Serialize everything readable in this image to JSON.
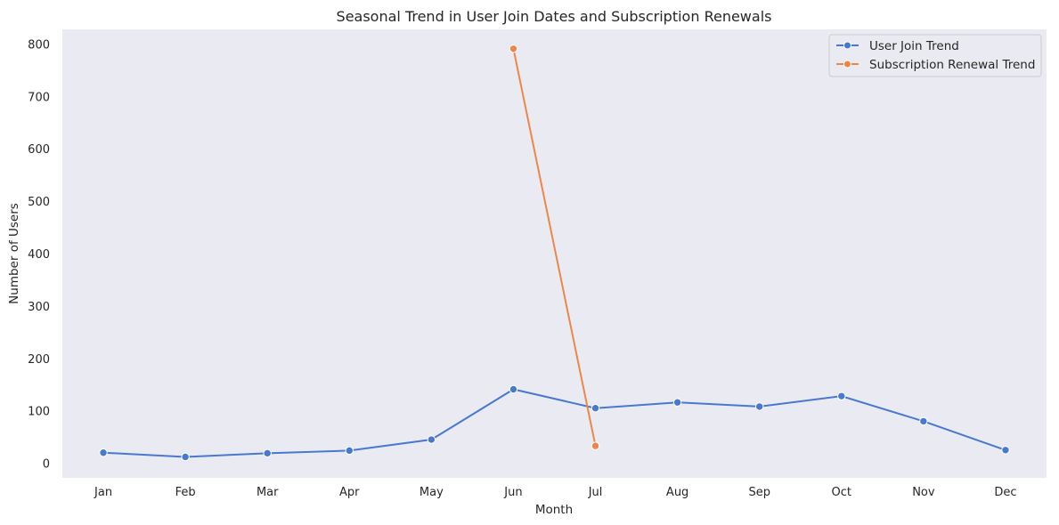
{
  "chart_data": {
    "type": "line",
    "title": "Seasonal Trend in User Join Dates and Subscription Renewals",
    "xlabel": "Month",
    "ylabel": "Number of Users",
    "categories": [
      "Jan",
      "Feb",
      "Mar",
      "Apr",
      "May",
      "Jun",
      "Jul",
      "Aug",
      "Sep",
      "Oct",
      "Nov",
      "Dec"
    ],
    "yticks": [
      0,
      100,
      200,
      300,
      400,
      500,
      600,
      700,
      800
    ],
    "ylim": [
      -28,
      828
    ],
    "grid": false,
    "legend_position": "top-right",
    "series": [
      {
        "name": "User Join Trend",
        "color": "#4878d0",
        "values": [
          20,
          12,
          19,
          24,
          45,
          141,
          105,
          116,
          108,
          128,
          80,
          25
        ]
      },
      {
        "name": "Subscription Renewal Trend",
        "color": "#ee854a",
        "values": [
          null,
          null,
          null,
          null,
          null,
          791,
          33,
          null,
          null,
          null,
          null,
          null
        ]
      }
    ]
  }
}
